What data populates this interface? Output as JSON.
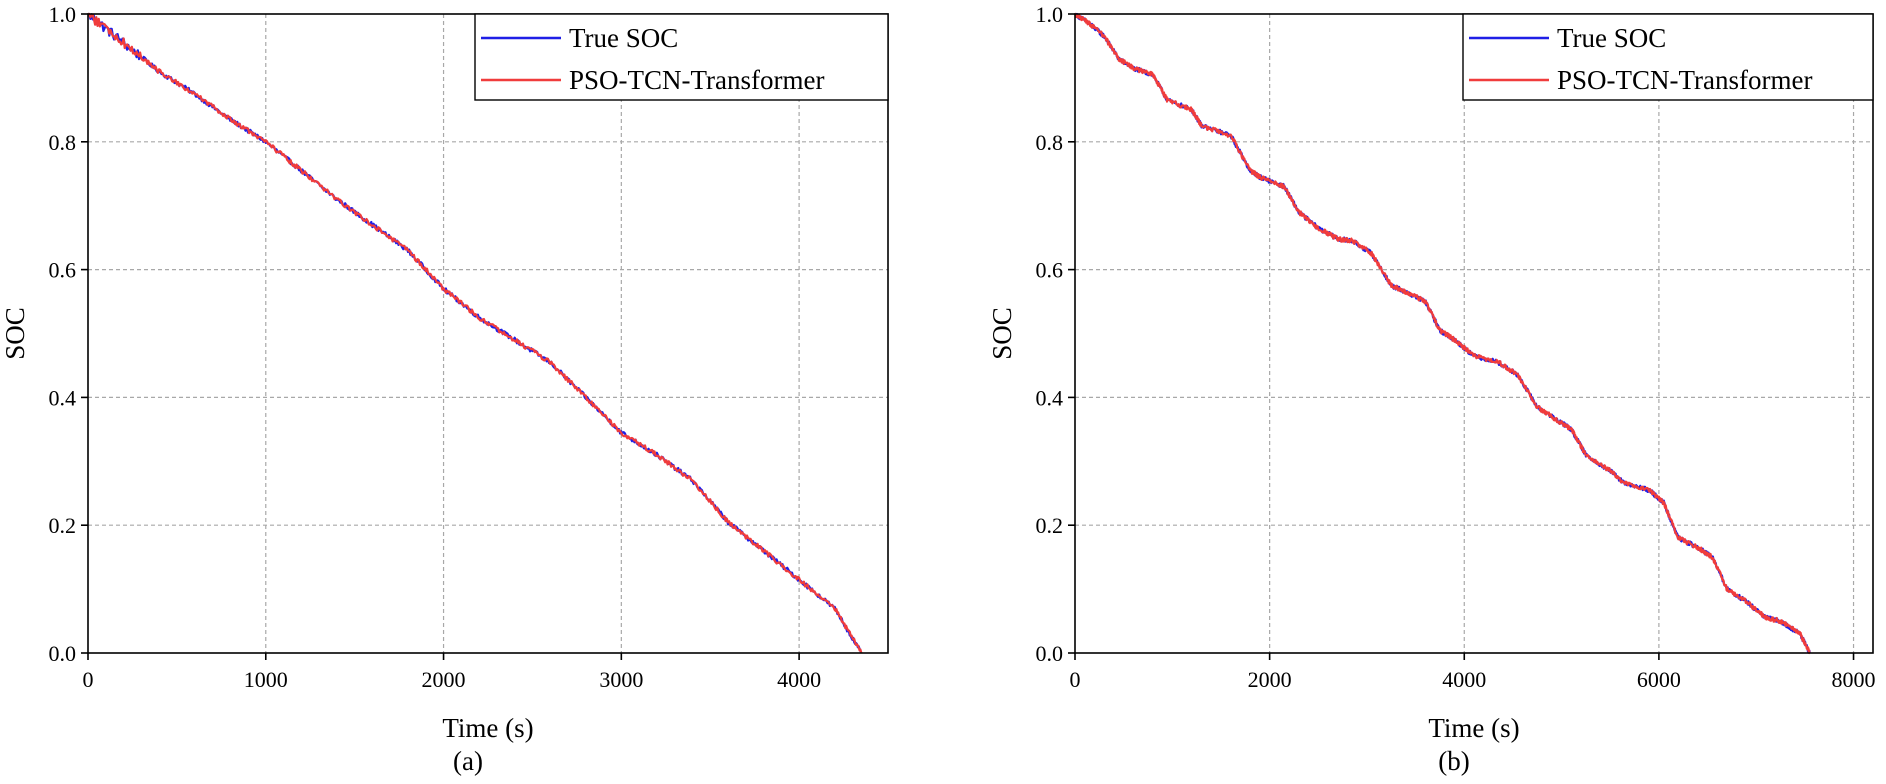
{
  "chart_data": [
    {
      "type": "line",
      "caption": "(a)",
      "xlabel": "Time (s)",
      "ylabel": "SOC",
      "xlim": [
        0,
        4500
      ],
      "ylim": [
        0.0,
        1.0
      ],
      "xticks": [
        0,
        1000,
        2000,
        3000,
        4000
      ],
      "xtick_labels": [
        "0",
        "1000",
        "2000",
        "3000",
        "4000"
      ],
      "yticks": [
        0.0,
        0.2,
        0.4,
        0.6,
        0.8,
        1.0
      ],
      "ytick_labels": [
        "0.0",
        "0.2",
        "0.4",
        "0.6",
        "0.8",
        "1.0"
      ],
      "grid": true,
      "legend_position": "top-right",
      "series": [
        {
          "name": "True SOC",
          "color": "#1f1fe6",
          "x": [
            0,
            200,
            400,
            600,
            800,
            1000,
            1200,
            1400,
            1600,
            1800,
            2000,
            2200,
            2400,
            2600,
            2800,
            3000,
            3200,
            3400,
            3600,
            3800,
            4000,
            4200,
            4350
          ],
          "y": [
            1.0,
            0.955,
            0.91,
            0.875,
            0.835,
            0.8,
            0.755,
            0.71,
            0.67,
            0.63,
            0.57,
            0.525,
            0.49,
            0.455,
            0.4,
            0.345,
            0.31,
            0.27,
            0.205,
            0.16,
            0.115,
            0.07,
            0.0
          ]
        },
        {
          "name": "PSO-TCN-Transformer",
          "color": "#f03c3c",
          "x": [
            0,
            200,
            400,
            600,
            800,
            1000,
            1200,
            1400,
            1600,
            1800,
            2000,
            2200,
            2400,
            2600,
            2800,
            3000,
            3200,
            3400,
            3600,
            3800,
            4000,
            4200,
            4350
          ],
          "y": [
            1.0,
            0.955,
            0.91,
            0.875,
            0.835,
            0.8,
            0.755,
            0.71,
            0.67,
            0.63,
            0.57,
            0.525,
            0.49,
            0.455,
            0.4,
            0.345,
            0.31,
            0.27,
            0.205,
            0.16,
            0.115,
            0.07,
            0.0
          ]
        }
      ]
    },
    {
      "type": "line",
      "caption": "(b)",
      "xlabel": "Time (s)",
      "ylabel": "SOC",
      "xlim": [
        0,
        8200
      ],
      "ylim": [
        0.0,
        1.0
      ],
      "xticks": [
        0,
        2000,
        4000,
        6000,
        8000
      ],
      "xtick_labels": [
        "0",
        "2000",
        "4000",
        "6000",
        "8000"
      ],
      "yticks": [
        0.0,
        0.2,
        0.4,
        0.6,
        0.8,
        1.0
      ],
      "ytick_labels": [
        "0.0",
        "0.2",
        "0.4",
        "0.6",
        "0.8",
        "1.0"
      ],
      "grid": true,
      "legend_position": "top-right",
      "series": [
        {
          "name": "True SOC",
          "color": "#1f1fe6",
          "x": [
            0,
            150,
            300,
            450,
            600,
            800,
            950,
            1200,
            1300,
            1600,
            1800,
            1900,
            2150,
            2300,
            2500,
            2700,
            2850,
            3050,
            3250,
            3400,
            3600,
            3750,
            3900,
            4100,
            4350,
            4550,
            4750,
            4900,
            5100,
            5250,
            5500,
            5650,
            5900,
            6050,
            6200,
            6400,
            6550,
            6700,
            6900,
            7100,
            7250,
            7450,
            7550
          ],
          "y": [
            1.0,
            0.985,
            0.965,
            0.93,
            0.915,
            0.905,
            0.865,
            0.85,
            0.825,
            0.81,
            0.755,
            0.745,
            0.73,
            0.69,
            0.665,
            0.648,
            0.645,
            0.625,
            0.575,
            0.565,
            0.55,
            0.505,
            0.49,
            0.465,
            0.455,
            0.435,
            0.385,
            0.37,
            0.35,
            0.31,
            0.285,
            0.265,
            0.255,
            0.235,
            0.18,
            0.165,
            0.15,
            0.1,
            0.08,
            0.055,
            0.05,
            0.03,
            0.0
          ]
        },
        {
          "name": "PSO-TCN-Transformer",
          "color": "#f03c3c",
          "x": [
            0,
            150,
            300,
            450,
            600,
            800,
            950,
            1200,
            1300,
            1600,
            1800,
            1900,
            2150,
            2300,
            2500,
            2700,
            2850,
            3050,
            3250,
            3400,
            3600,
            3750,
            3900,
            4100,
            4350,
            4550,
            4750,
            4900,
            5100,
            5250,
            5500,
            5650,
            5900,
            6050,
            6200,
            6400,
            6550,
            6700,
            6900,
            7100,
            7250,
            7450,
            7550
          ],
          "y": [
            1.0,
            0.985,
            0.965,
            0.93,
            0.915,
            0.905,
            0.865,
            0.85,
            0.825,
            0.81,
            0.755,
            0.745,
            0.73,
            0.69,
            0.665,
            0.648,
            0.645,
            0.625,
            0.575,
            0.565,
            0.55,
            0.505,
            0.49,
            0.465,
            0.455,
            0.435,
            0.385,
            0.37,
            0.35,
            0.31,
            0.285,
            0.265,
            0.255,
            0.235,
            0.18,
            0.165,
            0.15,
            0.1,
            0.08,
            0.055,
            0.05,
            0.03,
            0.0
          ]
        }
      ]
    }
  ]
}
